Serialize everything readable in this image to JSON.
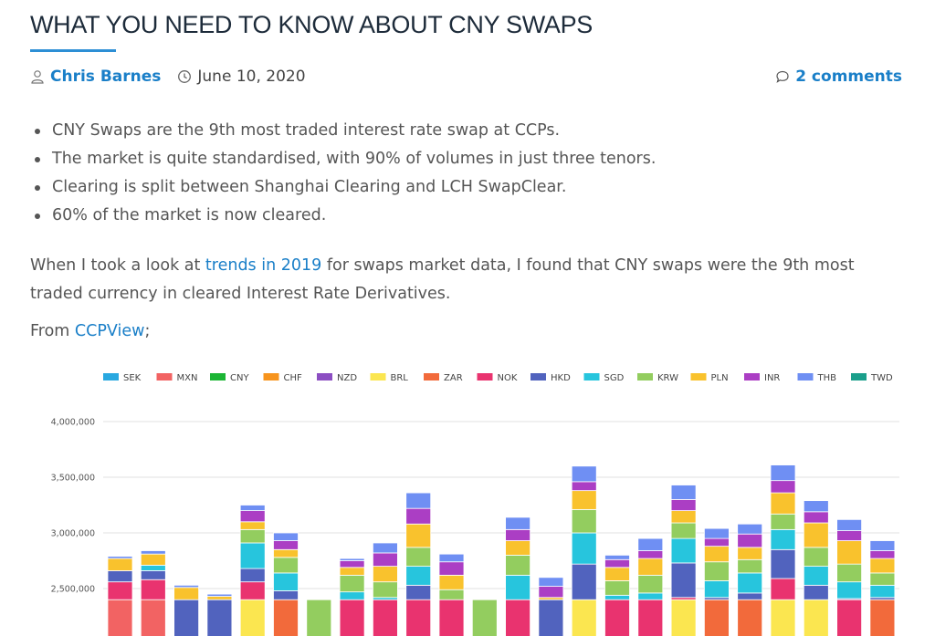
{
  "article": {
    "title": "WHAT YOU NEED TO KNOW ABOUT CNY SWAPS",
    "author": "Chris Barnes",
    "date": "June 10, 2020",
    "comments": "2 comments"
  },
  "bullets": [
    "CNY Swaps are the 9th most traded interest rate swap at CCPs.",
    "The market is quite standardised, with 90% of volumes in just three tenors.",
    "Clearing is split between Shanghai Clearing and LCH SwapClear.",
    "60% of the market is now cleared."
  ],
  "paragraph": {
    "before_link": "When I took a look at ",
    "link": "trends in 2019",
    "after_link": " for swaps market data, I found that CNY swaps were the 9th most traded currency in cleared Interest Rate Derivatives."
  },
  "from": {
    "prefix": "From ",
    "link": "CCPView",
    "suffix": ";"
  },
  "icons": {
    "author": "user-icon",
    "date": "clock-icon",
    "comments": "comment-bubble-icon"
  },
  "colors": {
    "title": "#1d2b3a",
    "accent": "#2d8fd5",
    "link": "#1a7fc8",
    "body_text": "#555555"
  },
  "chart_data": {
    "type": "bar",
    "stacked": true,
    "visible_portion": "upper part only; chart cut off at bottom of screenshot",
    "legend": [
      {
        "name": "SEK",
        "color": "#29a8e0"
      },
      {
        "name": "MXN",
        "color": "#f26363"
      },
      {
        "name": "CNY",
        "color": "#1bb534"
      },
      {
        "name": "CHF",
        "color": "#f7941d"
      },
      {
        "name": "NZD",
        "color": "#8c4ec2"
      },
      {
        "name": "BRL",
        "color": "#fbe650"
      },
      {
        "name": "ZAR",
        "color": "#f26a3b"
      },
      {
        "name": "NOK",
        "color": "#e9336f"
      },
      {
        "name": "HKD",
        "color": "#5163be"
      },
      {
        "name": "SGD",
        "color": "#27c5dd"
      },
      {
        "name": "KRW",
        "color": "#93cd5f"
      },
      {
        "name": "PLN",
        "color": "#f9c22d"
      },
      {
        "name": "INR",
        "color": "#ab3ec4"
      },
      {
        "name": "THB",
        "color": "#6f8ff3"
      },
      {
        "name": "TWD",
        "color": "#1a9f8b"
      }
    ],
    "y_ticks": [
      "4,000,000",
      "3,500,000",
      "3,000,000",
      "2,500,000"
    ],
    "ylim_visible": [
      2400000,
      4000000
    ],
    "grid": true,
    "legend_position": "top",
    "segment_order_bottom_to_top": [
      "MXN",
      "BRL",
      "ZAR",
      "NOK",
      "HKD",
      "SGD",
      "KRW",
      "PLN",
      "INR",
      "THB"
    ],
    "bars": [
      {
        "total": 2790000,
        "segments": {
          "MXN": 2400000,
          "NOK": 2560000,
          "HKD": 2660000,
          "SGD": 2660000,
          "PLN": 2770000,
          "THB": 2790000
        }
      },
      {
        "total": 2840000,
        "segments": {
          "MXN": 2400000,
          "NOK": 2580000,
          "HKD": 2660000,
          "SGD": 2710000,
          "PLN": 2810000,
          "THB": 2840000
        }
      },
      {
        "total": 2530000,
        "segments": {
          "HKD": 2400000,
          "SGD": 2400000,
          "PLN": 2510000,
          "THB": 2530000
        }
      },
      {
        "total": 2450000,
        "segments": {
          "HKD": 2400000,
          "SGD": 2330000,
          "PLN": 2430000,
          "THB": 2450000
        }
      },
      {
        "total": 3250000,
        "segments": {
          "BRL": 2400000,
          "ZAR": 2380000,
          "NOK": 2560000,
          "HKD": 2680000,
          "SGD": 2910000,
          "KRW": 3030000,
          "PLN": 3100000,
          "INR": 3200000,
          "THB": 3250000
        }
      },
      {
        "total": 3000000,
        "segments": {
          "ZAR": 2400000,
          "NOK": 2280000,
          "HKD": 2480000,
          "SGD": 2640000,
          "KRW": 2780000,
          "PLN": 2850000,
          "INR": 2930000,
          "THB": 3000000
        }
      },
      {
        "total": 2360000,
        "segments": {
          "KRW": 2400000,
          "PLN": 2190000,
          "INR": 2290000,
          "THB": 2360000
        }
      },
      {
        "total": 2770000,
        "segments": {
          "NOK": 2400000,
          "HKD": 2310000,
          "SGD": 2470000,
          "KRW": 2620000,
          "PLN": 2690000,
          "INR": 2750000,
          "THB": 2770000
        }
      },
      {
        "total": 2910000,
        "segments": {
          "NOK": 2400000,
          "HKD": 2280000,
          "SGD": 2420000,
          "KRW": 2560000,
          "PLN": 2700000,
          "INR": 2820000,
          "THB": 2910000
        }
      },
      {
        "total": 3360000,
        "segments": {
          "NOK": 2400000,
          "HKD": 2530000,
          "SGD": 2700000,
          "KRW": 2870000,
          "PLN": 3080000,
          "INR": 3220000,
          "THB": 3360000
        }
      },
      {
        "total": 2810000,
        "segments": {
          "NOK": 2400000,
          "HKD": 2180000,
          "SGD": 2380000,
          "KRW": 2490000,
          "PLN": 2620000,
          "INR": 2740000,
          "THB": 2810000
        }
      },
      {
        "total": 2370000,
        "segments": {
          "KRW": 2400000,
          "PLN": 2200000,
          "INR": 2280000,
          "THB": 2370000
        }
      },
      {
        "total": 3140000,
        "segments": {
          "NOK": 2400000,
          "HKD": 2310000,
          "SGD": 2620000,
          "KRW": 2800000,
          "PLN": 2930000,
          "INR": 3030000,
          "THB": 3140000
        }
      },
      {
        "total": 2600000,
        "segments": {
          "HKD": 2400000,
          "SGD": 2250000,
          "KRW": 2360000,
          "PLN": 2420000,
          "INR": 2520000,
          "THB": 2600000
        }
      },
      {
        "total": 3600000,
        "segments": {
          "BRL": 2400000,
          "ZAR": 2170000,
          "NOK": 2380000,
          "HKD": 2720000,
          "SGD": 3000000,
          "KRW": 3210000,
          "PLN": 3380000,
          "INR": 3460000,
          "THB": 3600000
        }
      },
      {
        "total": 2800000,
        "segments": {
          "NOK": 2400000,
          "HKD": 2240000,
          "SGD": 2440000,
          "KRW": 2570000,
          "PLN": 2690000,
          "INR": 2760000,
          "THB": 2800000
        }
      },
      {
        "total": 2950000,
        "segments": {
          "NOK": 2400000,
          "HKD": 2260000,
          "SGD": 2460000,
          "KRW": 2620000,
          "PLN": 2770000,
          "INR": 2840000,
          "THB": 2950000
        }
      },
      {
        "total": 3430000,
        "segments": {
          "BRL": 2400000,
          "ZAR": 2170000,
          "NOK": 2420000,
          "HKD": 2730000,
          "SGD": 2950000,
          "KRW": 3090000,
          "PLN": 3200000,
          "INR": 3300000,
          "THB": 3430000
        }
      },
      {
        "total": 3040000,
        "segments": {
          "ZAR": 2400000,
          "NOK": 2250000,
          "HKD": 2420000,
          "SGD": 2570000,
          "KRW": 2740000,
          "PLN": 2880000,
          "INR": 2950000,
          "THB": 3040000
        }
      },
      {
        "total": 3080000,
        "segments": {
          "ZAR": 2400000,
          "NOK": 2270000,
          "HKD": 2460000,
          "SGD": 2640000,
          "KRW": 2760000,
          "PLN": 2870000,
          "INR": 2990000,
          "THB": 3080000
        }
      },
      {
        "total": 3610000,
        "segments": {
          "BRL": 2400000,
          "ZAR": 2340000,
          "NOK": 2590000,
          "HKD": 2850000,
          "SGD": 3030000,
          "KRW": 3170000,
          "PLN": 3360000,
          "INR": 3470000,
          "THB": 3610000
        }
      },
      {
        "total": 3290000,
        "segments": {
          "BRL": 2400000,
          "ZAR": 2160000,
          "NOK": 2390000,
          "HKD": 2530000,
          "SGD": 2700000,
          "KRW": 2870000,
          "PLN": 3090000,
          "INR": 3190000,
          "THB": 3290000
        }
      },
      {
        "total": 3120000,
        "segments": {
          "NOK": 2400000,
          "HKD": 2410000,
          "SGD": 2560000,
          "KRW": 2720000,
          "PLN": 2930000,
          "INR": 3020000,
          "THB": 3120000
        }
      },
      {
        "total": 2930000,
        "segments": {
          "ZAR": 2400000,
          "NOK": 2290000,
          "HKD": 2420000,
          "SGD": 2530000,
          "KRW": 2640000,
          "PLN": 2770000,
          "INR": 2840000,
          "THB": 2930000
        }
      }
    ]
  }
}
